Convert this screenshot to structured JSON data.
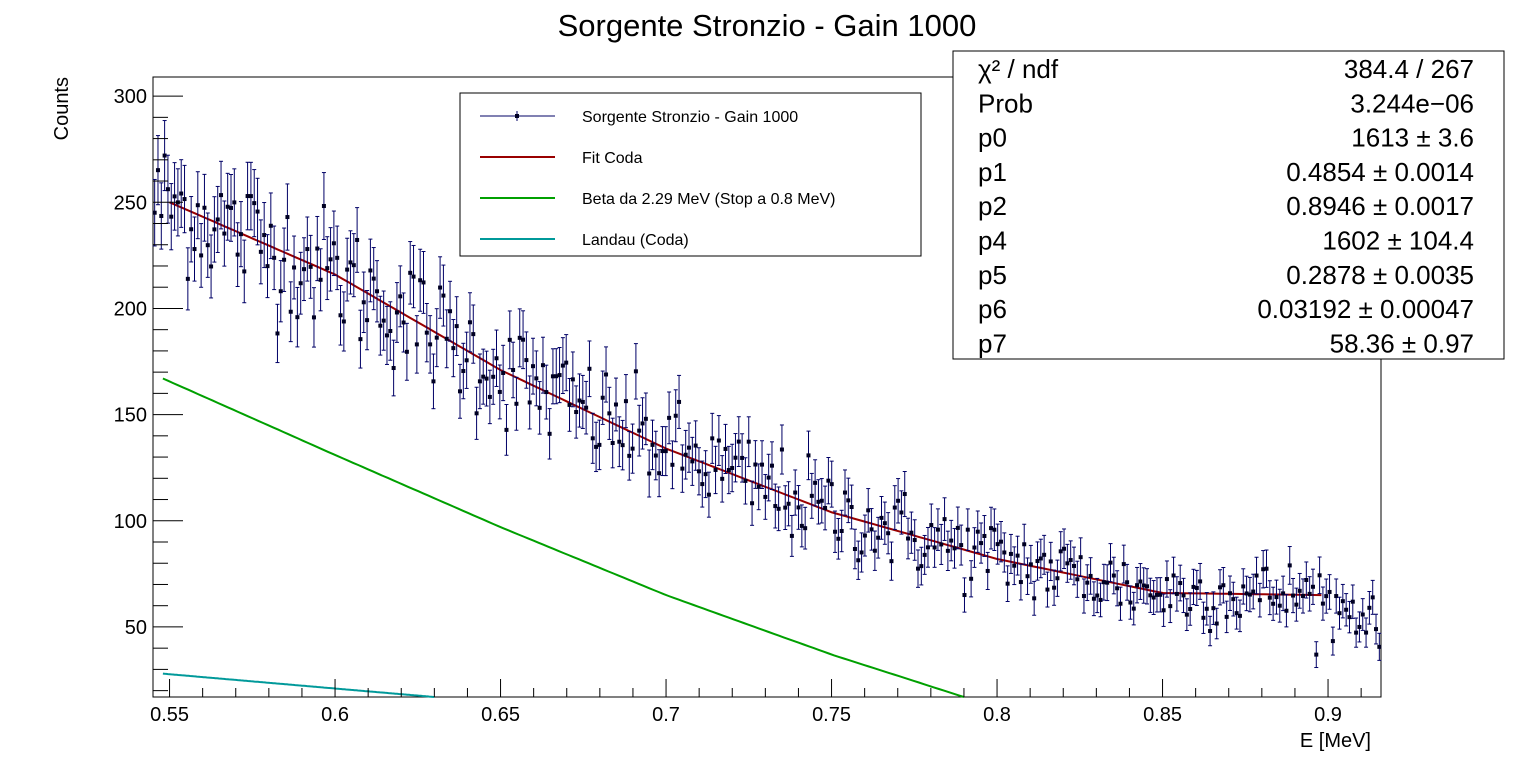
{
  "chart_data": {
    "type": "scatter",
    "title": "Sorgente Stronzio - Gain 1000",
    "xlabel": "E [MeV]",
    "ylabel": "Counts",
    "xlim": [
      0.545,
      0.916
    ],
    "ylim": [
      17,
      309
    ],
    "xticks": [
      "0.55",
      "0.6",
      "0.65",
      "0.7",
      "0.75",
      "0.8",
      "0.85",
      "0.9"
    ],
    "yticks": [
      "50",
      "100",
      "150",
      "200",
      "250",
      "300"
    ],
    "legend": {
      "placement": "top-center",
      "entries": [
        {
          "label": "Sorgente Stronzio - Gain 1000",
          "color": "#000066"
        },
        {
          "label": "Fit Coda",
          "color": "#990000"
        },
        {
          "label": "Beta da 2.29 MeV (Stop a 0.8 MeV)",
          "color": "#00a000"
        },
        {
          "label": "Landau (Coda)",
          "color": "#00999a"
        }
      ]
    },
    "series": [
      {
        "name": "Sorgente Stronzio - Gain 1000",
        "kind": "data-points-with-error-bars",
        "x_start": 0.545,
        "x_end": 0.916,
        "n_points": 370,
        "model": "follows Fit Coda curve with Poisson scatter"
      },
      {
        "name": "Fit Coda",
        "kind": "curve",
        "x": [
          0.55,
          0.6,
          0.65,
          0.7,
          0.75,
          0.8,
          0.85,
          0.898
        ],
        "y": [
          250,
          216,
          171,
          134,
          104,
          82,
          66,
          65
        ]
      },
      {
        "name": "Beta da 2.29 MeV (Stop a 0.8 MeV)",
        "kind": "curve",
        "x": [
          0.548,
          0.6,
          0.65,
          0.7,
          0.75,
          0.79
        ],
        "y": [
          167,
          131,
          97,
          65,
          37,
          17
        ]
      },
      {
        "name": "Landau (Coda)",
        "kind": "curve",
        "x": [
          0.548,
          0.6,
          0.63
        ],
        "y": [
          28,
          21,
          17
        ]
      }
    ],
    "stats_box": [
      {
        "label": "χ² / ndf",
        "value": "384.4 / 267"
      },
      {
        "label": "Prob",
        "value": "3.244e−06"
      },
      {
        "label": "p0",
        "value": "1613 ± 3.6"
      },
      {
        "label": "p1",
        "value": "0.4854 ± 0.0014"
      },
      {
        "label": "p2",
        "value": "0.8946 ± 0.0017"
      },
      {
        "label": "p4",
        "value": "1602 ± 104.4"
      },
      {
        "label": "p5",
        "value": "0.2878 ± 0.0035"
      },
      {
        "label": "p6",
        "value": "0.03192 ± 0.00047"
      },
      {
        "label": "p7",
        "value": "58.36 ± 0.97"
      }
    ],
    "grid": false
  }
}
